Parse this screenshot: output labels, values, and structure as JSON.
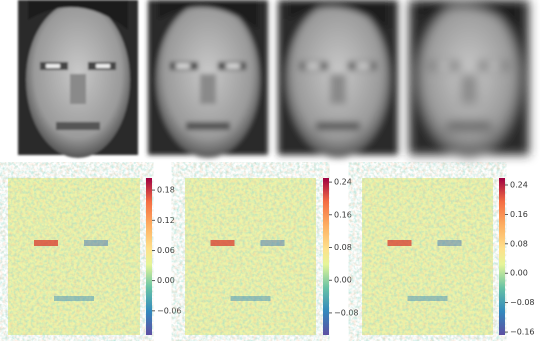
{
  "colorbars": [
    {
      "lim": [
        -0.108,
        0.204
      ],
      "ticks": [
        0.18,
        0.12,
        0.06,
        {
          "value": 0,
          "label": "0.00"
        },
        {
          "value": -0.06,
          "label": "−0.06"
        }
      ]
    },
    {
      "lim": [
        -0.134,
        0.25
      ],
      "ticks": [
        0.24,
        0.16,
        0.08,
        {
          "value": 0,
          "label": "0.00"
        },
        {
          "value": -0.08,
          "label": "−0.08"
        }
      ]
    },
    {
      "lim": [
        -0.168,
        0.259
      ],
      "ticks": [
        0.24,
        0.16,
        0.08,
        {
          "value": 0,
          "label": "0.00"
        },
        {
          "value": -0.08,
          "label": "−0.08"
        },
        {
          "value": -0.16,
          "label": "−0.16"
        }
      ]
    }
  ]
}
